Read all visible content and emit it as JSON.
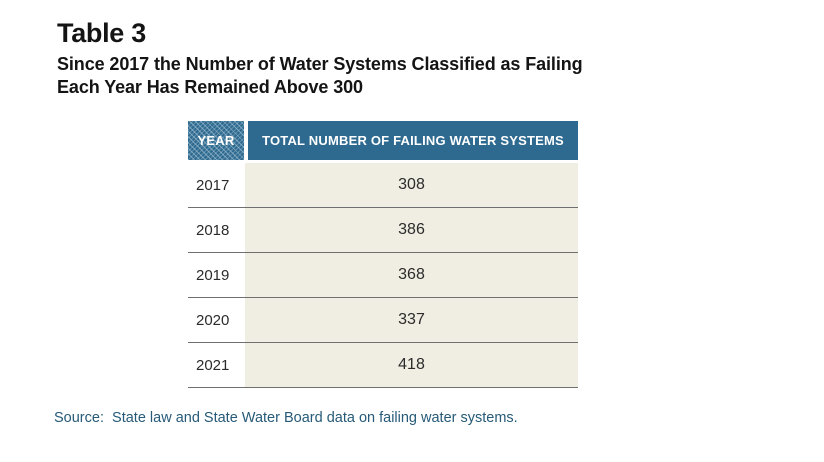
{
  "figure": {
    "title": "Table 3",
    "subtitle_lines": [
      "Since 2017 the Number of Water Systems Classified as Failing",
      "Each Year Has Remained Above 300"
    ],
    "source": "Source:  State law and State Water Board data on failing water systems."
  },
  "chart_data": {
    "type": "table",
    "title": "Table 3",
    "subtitle": "Since 2017 the Number of Water Systems Classified as Failing Each Year Has Remained Above 300",
    "columns": [
      "YEAR",
      "TOTAL NUMBER OF FAILING WATER SYSTEMS"
    ],
    "rows": [
      {
        "year": "2017",
        "value": 308
      },
      {
        "year": "2018",
        "value": 386
      },
      {
        "year": "2019",
        "value": 368
      },
      {
        "year": "2020",
        "value": 337
      },
      {
        "year": "2021",
        "value": 418
      }
    ],
    "source": "State law and State Water Board data on failing water systems."
  },
  "colors": {
    "header_blue": "#2e6a90",
    "row_beige": "#f0ede3",
    "separator_gray": "#6f6f6f",
    "body_text": "#2b2b2b",
    "title_text": "#141414",
    "source_text": "#265a78",
    "background": "#ffffff"
  }
}
